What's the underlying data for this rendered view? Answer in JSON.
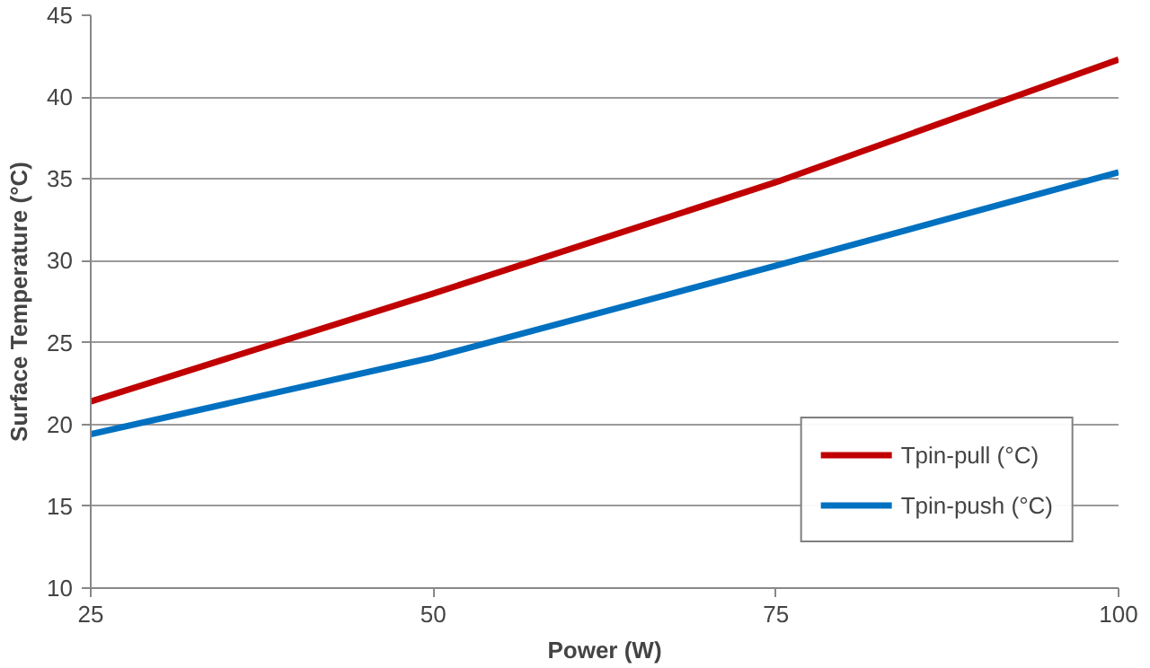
{
  "chart_data": {
    "type": "line",
    "xlabel": "Power (W)",
    "ylabel": "Surface Temperature (°C)",
    "x": [
      25,
      50,
      75,
      100
    ],
    "series": [
      {
        "name": "Tpin-pull (°C)",
        "color": "#c00000",
        "values": [
          21.4,
          28.0,
          34.8,
          42.3
        ]
      },
      {
        "name": "Tpin-push (°C)",
        "color": "#0070c0",
        "values": [
          19.4,
          24.1,
          29.7,
          35.4
        ]
      }
    ],
    "xlim": [
      25,
      100
    ],
    "xticks": [
      25,
      50,
      75,
      100
    ],
    "ylim": [
      10,
      45
    ],
    "yticks": [
      10,
      15,
      20,
      25,
      30,
      35,
      40,
      45
    ],
    "grid": "y",
    "legend": "bottom right",
    "marker": "none",
    "line_style": "solid"
  }
}
